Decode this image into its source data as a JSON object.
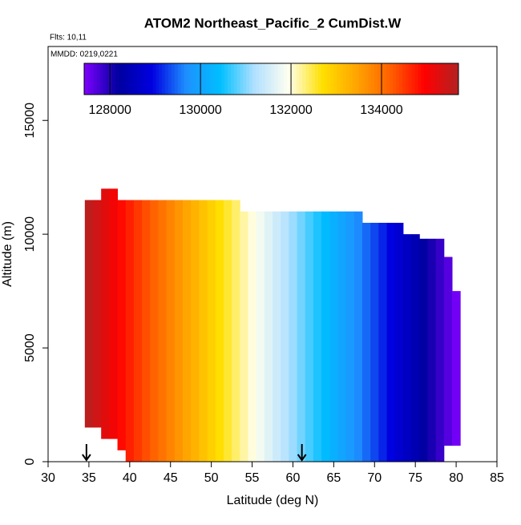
{
  "chart_data": {
    "type": "heatmap",
    "title": "ATOM2 Northeast_Pacific_2 CumDist.W",
    "annotations": [
      "Flts: 10,11",
      "MMDD: 0219,0221"
    ],
    "xlabel": "Latitude (deg N)",
    "ylabel": "Altitude (m)",
    "xlim": [
      30,
      85
    ],
    "xticks": [
      30,
      35,
      40,
      45,
      50,
      55,
      60,
      65,
      70,
      75,
      80,
      85
    ],
    "ylim": [
      0,
      18250
    ],
    "yticks": [
      0,
      5000,
      10000,
      15000
    ],
    "zlim": [
      127430,
      135700
    ],
    "zticks": [
      128000,
      130000,
      132000,
      134000
    ],
    "colors": [
      "#7f00ff",
      "#0000a0",
      "#0000e0",
      "#1e90ff",
      "#00bfff",
      "#b0e0ff",
      "#fffff0",
      "#ffe000",
      "#ffa500",
      "#ff6000",
      "#ff0000",
      "#b22222"
    ],
    "x_edges": [
      34.5,
      35.5,
      36.5,
      37.5,
      38.5,
      39.5,
      40.5,
      41.5,
      42.5,
      43.5,
      44.5,
      45.5,
      46.5,
      47.5,
      48.5,
      49.5,
      50.5,
      51.5,
      52.5,
      53.5,
      54.5,
      55.5,
      56.5,
      57.5,
      58.5,
      59.5,
      60.5,
      61.5,
      62.5,
      63.5,
      64.5,
      65.5,
      66.5,
      67.5,
      68.5,
      69.5,
      70.5,
      71.5,
      72.5,
      73.5,
      74.5,
      75.5,
      76.5,
      77.5,
      78.5,
      79.5,
      80.5
    ],
    "values": [
      135600,
      135420,
      135240,
      135060,
      134880,
      134700,
      134520,
      134340,
      134160,
      133980,
      133800,
      133620,
      133440,
      133260,
      133080,
      132900,
      132720,
      132540,
      132360,
      132180,
      132000,
      131820,
      131640,
      131460,
      131280,
      131100,
      130920,
      130740,
      130560,
      130380,
      130200,
      130020,
      129840,
      129660,
      129480,
      129300,
      129120,
      128940,
      128760,
      128580,
      128400,
      128220,
      128040,
      127860,
      127680,
      127500
    ],
    "tops": [
      11500,
      11500,
      12000,
      12000,
      11500,
      11500,
      11500,
      11500,
      11500,
      11500,
      11500,
      11500,
      11500,
      11500,
      11500,
      11500,
      11500,
      11500,
      11500,
      11000,
      11000,
      11000,
      11000,
      11000,
      11000,
      11000,
      11000,
      11000,
      11000,
      11000,
      11000,
      11000,
      11000,
      11000,
      10500,
      10500,
      10500,
      10500,
      10500,
      10000,
      10000,
      9800,
      9800,
      9800,
      9000,
      7500
    ],
    "bottoms": [
      1500,
      1500,
      1000,
      1000,
      500,
      0,
      0,
      0,
      0,
      0,
      0,
      0,
      0,
      0,
      0,
      0,
      0,
      0,
      0,
      0,
      0,
      0,
      0,
      0,
      0,
      0,
      0,
      0,
      0,
      0,
      0,
      0,
      0,
      0,
      0,
      0,
      0,
      0,
      0,
      0,
      0,
      0,
      0,
      0,
      700,
      700
    ],
    "markers": [
      34.7,
      61.1
    ]
  }
}
